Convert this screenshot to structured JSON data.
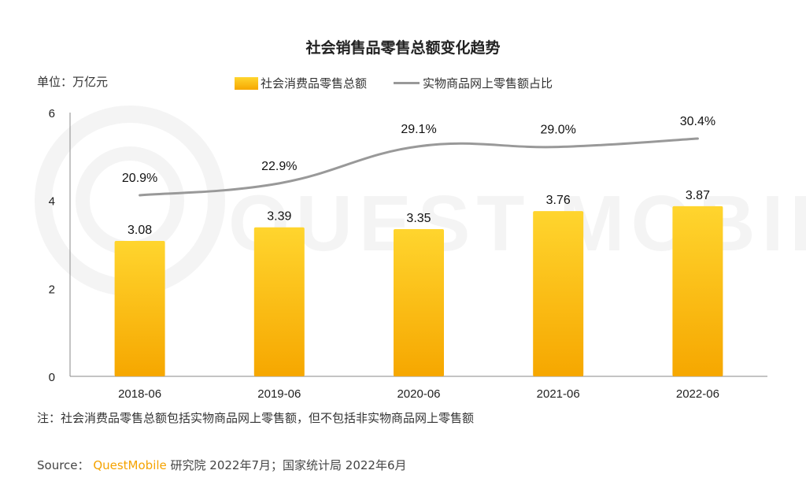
{
  "title": "社会销售品零售总额变化趋势",
  "unit_label": "单位：万亿元",
  "legend": {
    "bar_label": "社会消费品零售总额",
    "line_label": "实物商品网上零售额占比"
  },
  "note": "注：社会消费品零售总额包括实物商品网上零售额，但不包括非实物商品网上零售额",
  "source": {
    "prefix": "Source：",
    "brand": "QuestMobile",
    "rest": " 研究院 2022年7月；国家统计局 2022年6月"
  },
  "watermark": "QUEST MOBILE",
  "colors": {
    "bar_top": "#FFD52E",
    "bar_bottom": "#F6A700",
    "line": "#999999",
    "brand": "#F5A300"
  },
  "chart_data": {
    "type": "bar",
    "categories": [
      "2018-06",
      "2019-06",
      "2020-06",
      "2021-06",
      "2022-06"
    ],
    "series": [
      {
        "name": "社会消费品零售总额",
        "type": "bar",
        "values": [
          3.08,
          3.39,
          3.35,
          3.76,
          3.87
        ],
        "labels": [
          "3.08",
          "3.39",
          "3.35",
          "3.76",
          "3.87"
        ]
      },
      {
        "name": "实物商品网上零售额占比",
        "type": "line",
        "values": [
          20.9,
          22.9,
          29.1,
          29.0,
          30.4
        ],
        "labels": [
          "20.9%",
          "22.9%",
          "29.1%",
          "29.0%",
          "30.4%"
        ]
      }
    ],
    "ylim": [
      0,
      6
    ],
    "yticks": [
      "0",
      "2",
      "4",
      "6"
    ],
    "title": "社会销售品零售总额变化趋势",
    "legend_position": "top-center"
  }
}
